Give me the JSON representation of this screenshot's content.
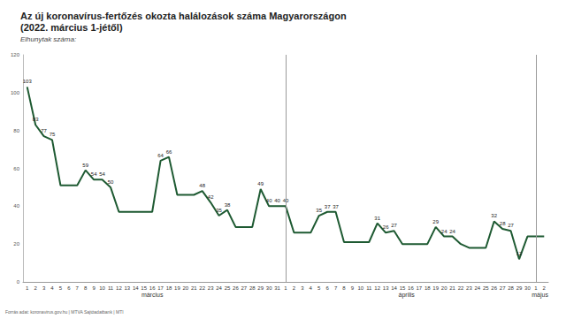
{
  "chart_data": {
    "type": "line",
    "title": "Az új koronavírus-fertőzés okozta halálozások száma Magyarországon\n(2022. március 1-jétől)",
    "subtitle": "Elhunytak száma:",
    "source": "Forrás adat: koronavirus.gov.hu | MTVA Sajtóadatbank | MTI",
    "month_labels": [
      "március",
      "április",
      "május"
    ],
    "categories": [
      "1",
      "2",
      "3",
      "4",
      "5",
      "6",
      "7",
      "8",
      "9",
      "10",
      "11",
      "12",
      "13",
      "14",
      "15",
      "16",
      "17",
      "18",
      "19",
      "20",
      "21",
      "22",
      "23",
      "24",
      "25",
      "26",
      "27",
      "28",
      "29",
      "30",
      "31",
      "1",
      "2",
      "3",
      "4",
      "5",
      "6",
      "7",
      "8",
      "9",
      "10",
      "11",
      "12",
      "13",
      "14",
      "15",
      "16",
      "17",
      "18",
      "19",
      "20",
      "21",
      "22",
      "23",
      "24",
      "25",
      "26",
      "27",
      "28",
      "29",
      "30",
      "1",
      "2"
    ],
    "values": [
      103,
      83,
      77,
      75,
      51,
      51,
      51,
      59,
      54,
      54,
      50,
      37,
      37,
      37,
      37,
      37,
      64,
      66,
      46,
      46,
      46,
      48,
      42,
      35,
      38,
      29,
      29,
      29,
      49,
      40,
      40,
      40,
      26,
      26,
      26,
      35,
      37,
      37,
      21,
      21,
      21,
      21,
      31,
      26,
      27,
      20,
      20,
      20,
      20,
      29,
      24,
      24,
      20,
      18,
      18,
      18,
      32,
      28,
      27,
      12,
      24,
      24,
      24
    ],
    "value_labels": [
      "103",
      "83",
      "77",
      "75",
      null,
      null,
      null,
      "59",
      "54",
      "54",
      "50",
      null,
      null,
      null,
      null,
      null,
      "64",
      "66",
      null,
      null,
      null,
      "48",
      "42",
      "35",
      "38",
      null,
      null,
      null,
      "49",
      "40",
      "40",
      "40",
      null,
      null,
      null,
      "35",
      "37",
      "37",
      null,
      null,
      null,
      null,
      "31",
      "26",
      "27",
      null,
      null,
      null,
      null,
      "29",
      "24",
      "24",
      null,
      null,
      null,
      null,
      "32",
      "28",
      "27",
      "12",
      null,
      null,
      null
    ],
    "color": "#1e5a32",
    "ylim": [
      0,
      120
    ],
    "yticks": [
      0,
      20,
      40,
      60,
      80,
      100,
      120
    ],
    "grid": false,
    "data_labels": true
  }
}
